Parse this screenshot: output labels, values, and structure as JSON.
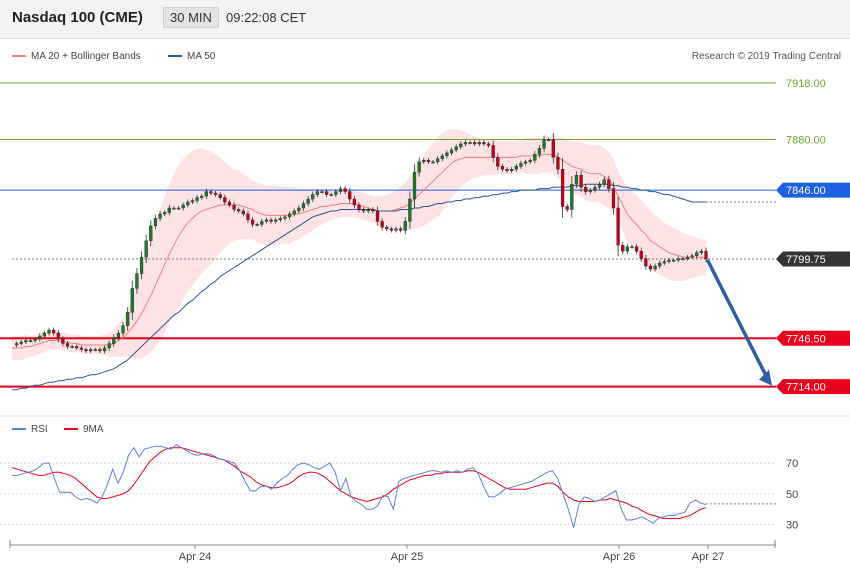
{
  "header": {
    "title": "Nasdaq 100 (CME)",
    "timeframe": "30 MIN",
    "time": "09:22:08 CET"
  },
  "legend": {
    "bollinger": {
      "label": "MA 20 + Bollinger Bands",
      "color": "#f08080"
    },
    "ma50": {
      "label": "MA 50",
      "color": "#2b5797"
    }
  },
  "credit": "Research © 2019 Trading Central",
  "rsi_legend": {
    "rsi": {
      "label": "RSI",
      "color": "#5b7fdc"
    },
    "ma9": {
      "label": "9MA",
      "color": "#e8001c"
    }
  },
  "chart_data": {
    "type": "candlestick",
    "ylim": [
      7697,
      7928
    ],
    "price_levels": [
      {
        "value": 7918.0,
        "label": "7918.00",
        "kind": "target",
        "color": "#6aa834"
      },
      {
        "value": 7880.0,
        "label": "7880.00",
        "kind": "target",
        "color": "#6aa834"
      },
      {
        "value": 7846.0,
        "label": "7846.00",
        "kind": "pivot",
        "color": "#1e5fe0"
      },
      {
        "value": 7799.75,
        "label": "7799.75",
        "kind": "last",
        "color": "#333333"
      },
      {
        "value": 7746.5,
        "label": "7746.50",
        "kind": "support",
        "color": "#e8001c"
      },
      {
        "value": 7714.0,
        "label": "7714.00",
        "kind": "support",
        "color": "#e8001c"
      }
    ],
    "x_labels": [
      "Apr 24",
      "Apr 25",
      "Apr 26",
      "Apr 27"
    ],
    "forecast_arrow": {
      "from": 7799.75,
      "to": 7714.0,
      "color": "#2e5fa3"
    },
    "price_path": [
      7742,
      7743,
      7744,
      7745,
      7745,
      7746,
      7748,
      7750,
      7752,
      7750,
      7746,
      7743,
      7741,
      7741,
      7740,
      7739,
      7738,
      7739,
      7739,
      7738,
      7740,
      7743,
      7747,
      7750,
      7755,
      7764,
      7780,
      7790,
      7801,
      7812,
      7822,
      7827,
      7830,
      7831,
      7834,
      7834,
      7834,
      7836,
      7838,
      7839,
      7841,
      7842,
      7845,
      7844,
      7843,
      7841,
      7838,
      7836,
      7833,
      7832,
      7830,
      7826,
      7823,
      7823,
      7825,
      7826,
      7825,
      7826,
      7827,
      7828,
      7830,
      7832,
      7834,
      7837,
      7840,
      7843,
      7845,
      7845,
      7843,
      7843,
      7845,
      7847,
      7845,
      7840,
      7836,
      7833,
      7832,
      7833,
      7832,
      7825,
      7821,
      7820,
      7819,
      7820,
      7819,
      7825,
      7840,
      7858,
      7865,
      7866,
      7865,
      7865,
      7867,
      7869,
      7871,
      7873,
      7875,
      7877,
      7878,
      7878,
      7877,
      7878,
      7877,
      7876,
      7868,
      7862,
      7860,
      7859,
      7860,
      7862,
      7864,
      7865,
      7866,
      7870,
      7874,
      7880,
      7880,
      7868,
      7860,
      7835,
      7833,
      7850,
      7856,
      7848,
      7845,
      7846,
      7848,
      7850,
      7853,
      7847,
      7834,
      7809,
      7805,
      7808,
      7808,
      7805,
      7800,
      7795,
      7793,
      7795,
      7797,
      7798,
      7799,
      7799,
      7800,
      7800,
      7801,
      7802,
      7804,
      7805,
      7800
    ],
    "ma20": [
      7740,
      7740,
      7740,
      7741,
      7741,
      7742,
      7743,
      7744,
      7745,
      7745,
      7745,
      7744,
      7744,
      7743,
      7743,
      7742,
      7742,
      7742,
      7742,
      7742,
      7742,
      7742,
      7743,
      7745,
      7747,
      7750,
      7754,
      7758,
      7763,
      7769,
      7775,
      7782,
      7789,
      7796,
      7803,
      7809,
      7815,
      7820,
      7824,
      7827,
      7830,
      7832,
      7833,
      7834,
      7835,
      7836,
      7836,
      7836,
      7836,
      7836,
      7835,
      7834,
      7833,
      7831,
      7830,
      7829,
      7829,
      7829,
      7829,
      7829,
      7829,
      7830,
      7830,
      7831,
      7832,
      7833,
      7834,
      7835,
      7835,
      7836,
      7836,
      7837,
      7837,
      7837,
      7837,
      7836,
      7835,
      7834,
      7833,
      7832,
      7832,
      7832,
      7832,
      7833,
      7834,
      7835,
      7837,
      7840,
      7843,
      7846,
      7849,
      7852,
      7855,
      7858,
      7861,
      7864,
      7866,
      7867,
      7868,
      7868,
      7868,
      7868,
      7868,
      7868,
      7868,
      7868,
      7868,
      7868,
      7868,
      7868,
      7869,
      7869,
      7869,
      7869,
      7869,
      7870,
      7870,
      7870,
      7868,
      7866,
      7864,
      7862,
      7861,
      7860,
      7858,
      7857,
      7857,
      7857,
      7855,
      7853,
      7849,
      7842,
      7836,
      7830,
      7826,
      7823,
      7819,
      7816,
      7812,
      7810,
      7808,
      7806,
      7804,
      7803,
      7802,
      7801,
      7801,
      7801,
      7801,
      7801,
      7800
    ],
    "ma50": [
      7712,
      7712,
      7713,
      7713,
      7714,
      7715,
      7715,
      7716,
      7717,
      7717,
      7718,
      7718,
      7719,
      7719,
      7720,
      7720,
      7721,
      7722,
      7722,
      7723,
      7724,
      7725,
      7726,
      7728,
      7730,
      7732,
      7735,
      7738,
      7741,
      7744,
      7747,
      7750,
      7753,
      7756,
      7759,
      7762,
      7764,
      7767,
      7770,
      7772,
      7775,
      7778,
      7780,
      7783,
      7785,
      7788,
      7790,
      7792,
      7794,
      7796,
      7798,
      7800,
      7802,
      7804,
      7806,
      7808,
      7810,
      7812,
      7814,
      7816,
      7818,
      7820,
      7822,
      7824,
      7826,
      7828,
      7829,
      7830,
      7831,
      7832,
      7832,
      7833,
      7833,
      7833,
      7833,
      7833,
      7833,
      7833,
      7833,
      7832,
      7832,
      7832,
      7832,
      7832,
      7833,
      7833,
      7833,
      7834,
      7834,
      7835,
      7835,
      7836,
      7837,
      7837,
      7838,
      7838,
      7839,
      7839,
      7840,
      7840,
      7841,
      7841,
      7842,
      7842,
      7843,
      7843,
      7844,
      7844,
      7845,
      7845,
      7846,
      7846,
      7846,
      7846,
      7847,
      7847,
      7847,
      7848,
      7848,
      7848,
      7848,
      7849,
      7849,
      7849,
      7850,
      7850,
      7850,
      7850,
      7850,
      7850,
      7849,
      7849,
      7848,
      7848,
      7847,
      7847,
      7846,
      7846,
      7845,
      7845,
      7844,
      7843,
      7843,
      7842,
      7841,
      7840,
      7839,
      7838,
      7838,
      7838,
      7838
    ],
    "bb_width": [
      8,
      8,
      8,
      8,
      7,
      7,
      7,
      7,
      6,
      6,
      6,
      6,
      6,
      6,
      6,
      6,
      6,
      6,
      6,
      6,
      7,
      8,
      9,
      11,
      13,
      16,
      20,
      25,
      30,
      34,
      38,
      41,
      44,
      46,
      47,
      48,
      48,
      47,
      46,
      45,
      44,
      42,
      40,
      38,
      35,
      32,
      29,
      26,
      24,
      23,
      22,
      21,
      20,
      20,
      20,
      20,
      20,
      20,
      19,
      19,
      19,
      18,
      17,
      16,
      15,
      14,
      13,
      12,
      11,
      10,
      9,
      9,
      9,
      9,
      9,
      9,
      9,
      9,
      9,
      10,
      10,
      11,
      12,
      13,
      14,
      16,
      18,
      20,
      22,
      24,
      25,
      26,
      27,
      26,
      25,
      23,
      21,
      19,
      17,
      15,
      14,
      13,
      12,
      12,
      12,
      11,
      11,
      11,
      11,
      11,
      11,
      12,
      12,
      12,
      12,
      12,
      12,
      13,
      14,
      15,
      16,
      17,
      18,
      18,
      19,
      19,
      19,
      19,
      19,
      19,
      18,
      17,
      17,
      18,
      19,
      20,
      20,
      20,
      20,
      19,
      19,
      18,
      18,
      18,
      17,
      16,
      15,
      14,
      13,
      12,
      12,
      12
    ],
    "rsi": {
      "ylim": [
        20,
        85
      ],
      "ticks": [
        70,
        50,
        30
      ],
      "rsi_values": [
        62,
        62,
        63,
        64,
        65,
        67,
        70,
        70,
        60,
        51,
        51,
        51,
        48,
        46,
        47,
        46,
        44,
        48,
        56,
        66,
        57,
        64,
        75,
        80,
        74,
        79,
        80,
        81,
        81,
        80,
        79,
        82,
        80,
        78,
        76,
        75,
        76,
        76,
        75,
        73,
        72,
        71,
        70,
        65,
        58,
        52,
        52,
        55,
        55,
        53,
        57,
        60,
        62,
        66,
        69,
        70,
        69,
        67,
        66,
        68,
        70,
        64,
        52,
        60,
        48,
        45,
        43,
        40,
        40,
        42,
        49,
        48,
        40,
        58,
        60,
        61,
        62,
        63,
        64,
        65,
        65,
        64,
        65,
        64,
        65,
        64,
        66,
        67,
        63,
        55,
        48,
        48,
        50,
        53,
        54,
        55,
        56,
        57,
        58,
        60,
        62,
        64,
        65,
        60,
        50,
        40,
        28,
        43,
        48,
        47,
        45,
        46,
        48,
        50,
        52,
        40,
        33,
        33,
        34,
        35,
        33,
        31,
        34,
        35,
        36,
        36,
        37,
        38,
        44,
        46,
        44,
        43
      ],
      "ma9_values": [
        67,
        66,
        65,
        64,
        63,
        62,
        62,
        63,
        64,
        64,
        63,
        62,
        60,
        57,
        54,
        51,
        48,
        47,
        47,
        48,
        49,
        50,
        52,
        56,
        61,
        66,
        71,
        74,
        77,
        79,
        80,
        80,
        80,
        79,
        78,
        77,
        76,
        75,
        74,
        73,
        72,
        70,
        68,
        65,
        63,
        61,
        58,
        56,
        55,
        54,
        54,
        55,
        56,
        58,
        61,
        63,
        64,
        64,
        63,
        61,
        58,
        55,
        52,
        50,
        48,
        47,
        46,
        45,
        46,
        47,
        48,
        50,
        53,
        55,
        57,
        59,
        60,
        61,
        62,
        62,
        63,
        63,
        64,
        64,
        64,
        64,
        65,
        65,
        64,
        62,
        60,
        58,
        56,
        54,
        53,
        53,
        53,
        53,
        54,
        55,
        56,
        57,
        57,
        55,
        51,
        48,
        46,
        45,
        45,
        45,
        45,
        46,
        46,
        47,
        46,
        45,
        44,
        42,
        41,
        39,
        37,
        36,
        35,
        34,
        34,
        34,
        34,
        35,
        36,
        38,
        40,
        41
      ]
    }
  }
}
